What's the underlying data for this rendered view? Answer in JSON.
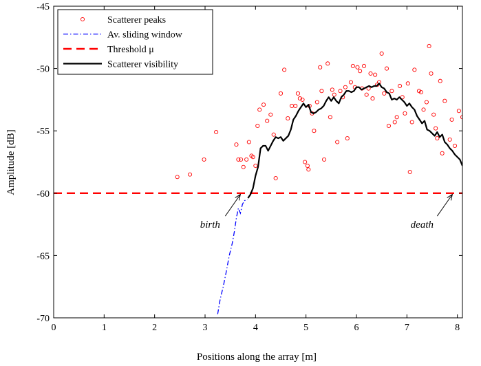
{
  "chart_data": {
    "type": "line",
    "xlabel": "Positions along the array [m]",
    "ylabel": "Amplitude [dB]",
    "xlim": [
      0,
      8.1
    ],
    "ylim": [
      -70,
      -45
    ],
    "xticks": [
      0,
      1,
      2,
      3,
      4,
      5,
      6,
      7,
      8
    ],
    "yticks": [
      -70,
      -65,
      -60,
      -55,
      -50,
      -45
    ],
    "xtick_labels": [
      "0",
      "1",
      "2",
      "3",
      "4",
      "5",
      "6",
      "7",
      "8"
    ],
    "ytick_labels": [
      "-70",
      "-65",
      "-60",
      "-55",
      "-50",
      "-45"
    ],
    "grid": false,
    "legend_position": "top-left",
    "legend": [
      {
        "label": "Scatterer peaks",
        "style": "circle",
        "color": "#ff0000"
      },
      {
        "label": "Av. sliding window",
        "style": "dashdot",
        "color": "#0000ff"
      },
      {
        "label": "Threshold μ",
        "style": "dashed",
        "color": "#ff0000"
      },
      {
        "label": "Scatterer visibility",
        "style": "solid",
        "color": "#000000"
      }
    ],
    "annotations": [
      {
        "text": "birth",
        "x": 3.1,
        "y": -62.5,
        "arrow_to": [
          3.7,
          -60.1
        ]
      },
      {
        "text": "death",
        "x": 7.3,
        "y": -62.5,
        "arrow_to": [
          7.9,
          -60.1
        ]
      }
    ],
    "series": [
      {
        "name": "Scatterer peaks",
        "kind": "scatter",
        "color": "#ff0000",
        "points": [
          [
            2.45,
            -58.7
          ],
          [
            2.7,
            -58.5
          ],
          [
            2.98,
            -57.3
          ],
          [
            3.22,
            -55.1
          ],
          [
            3.62,
            -56.1
          ],
          [
            3.66,
            -57.3
          ],
          [
            3.71,
            -57.3
          ],
          [
            3.76,
            -57.9
          ],
          [
            3.82,
            -57.3
          ],
          [
            3.87,
            -55.9
          ],
          [
            3.92,
            -57.0
          ],
          [
            3.95,
            -57.1
          ],
          [
            4.0,
            -57.8
          ],
          [
            4.04,
            -54.6
          ],
          [
            4.08,
            -53.3
          ],
          [
            4.16,
            -52.9
          ],
          [
            4.23,
            -54.2
          ],
          [
            4.3,
            -53.7
          ],
          [
            4.36,
            -55.3
          ],
          [
            4.4,
            -58.8
          ],
          [
            4.5,
            -52.0
          ],
          [
            4.57,
            -50.1
          ],
          [
            4.64,
            -54.0
          ],
          [
            4.72,
            -53.0
          ],
          [
            4.79,
            -53.0
          ],
          [
            4.84,
            -52.0
          ],
          [
            4.88,
            -52.4
          ],
          [
            4.93,
            -52.5
          ],
          [
            4.98,
            -57.5
          ],
          [
            5.03,
            -57.8
          ],
          [
            5.05,
            -58.1
          ],
          [
            5.07,
            -53.0
          ],
          [
            5.12,
            -53.6
          ],
          [
            5.16,
            -55.0
          ],
          [
            5.22,
            -52.7
          ],
          [
            5.28,
            -49.9
          ],
          [
            5.31,
            -51.8
          ],
          [
            5.36,
            -57.3
          ],
          [
            5.43,
            -49.6
          ],
          [
            5.48,
            -53.9
          ],
          [
            5.52,
            -51.7
          ],
          [
            5.56,
            -52.1
          ],
          [
            5.62,
            -55.9
          ],
          [
            5.68,
            -51.8
          ],
          [
            5.73,
            -52.3
          ],
          [
            5.78,
            -51.5
          ],
          [
            5.82,
            -55.6
          ],
          [
            5.89,
            -51.1
          ],
          [
            5.93,
            -49.8
          ],
          [
            5.97,
            -51.5
          ],
          [
            6.02,
            -49.9
          ],
          [
            6.07,
            -50.2
          ],
          [
            6.11,
            -51.6
          ],
          [
            6.15,
            -49.8
          ],
          [
            6.2,
            -52.1
          ],
          [
            6.24,
            -51.6
          ],
          [
            6.28,
            -50.4
          ],
          [
            6.32,
            -52.4
          ],
          [
            6.37,
            -50.5
          ],
          [
            6.41,
            -51.3
          ],
          [
            6.45,
            -51.1
          ],
          [
            6.5,
            -48.8
          ],
          [
            6.55,
            -52.0
          ],
          [
            6.6,
            -50.0
          ],
          [
            6.64,
            -54.6
          ],
          [
            6.7,
            -51.8
          ],
          [
            6.76,
            -54.3
          ],
          [
            6.8,
            -53.9
          ],
          [
            6.86,
            -51.4
          ],
          [
            6.91,
            -52.3
          ],
          [
            6.96,
            -53.6
          ],
          [
            7.02,
            -51.2
          ],
          [
            7.06,
            -58.3
          ],
          [
            7.1,
            -54.3
          ],
          [
            7.15,
            -50.1
          ],
          [
            7.24,
            -51.8
          ],
          [
            7.28,
            -51.9
          ],
          [
            7.33,
            -53.3
          ],
          [
            7.39,
            -52.7
          ],
          [
            7.44,
            -48.2
          ],
          [
            7.48,
            -50.4
          ],
          [
            7.53,
            -53.7
          ],
          [
            7.57,
            -54.8
          ],
          [
            7.6,
            -55.6
          ],
          [
            7.66,
            -51.0
          ],
          [
            7.7,
            -56.8
          ],
          [
            7.75,
            -52.6
          ],
          [
            7.85,
            -55.7
          ],
          [
            7.89,
            -54.1
          ],
          [
            7.95,
            -56.2
          ],
          [
            8.03,
            -53.4
          ],
          [
            8.1,
            -53.9
          ]
        ]
      },
      {
        "name": "Av. sliding window",
        "kind": "line",
        "style": "dashdot",
        "color": "#0000ff",
        "points": [
          [
            3.25,
            -69.7
          ],
          [
            3.3,
            -68.5
          ],
          [
            3.36,
            -67.5
          ],
          [
            3.42,
            -66.3
          ],
          [
            3.48,
            -65.0
          ],
          [
            3.54,
            -64.0
          ],
          [
            3.58,
            -63.1
          ],
          [
            3.62,
            -62.0
          ],
          [
            3.66,
            -61.2
          ],
          [
            3.7,
            -61.6
          ],
          [
            3.74,
            -60.9
          ],
          [
            3.78,
            -60.6
          ],
          [
            3.84,
            -60.5
          ]
        ]
      },
      {
        "name": "Threshold μ",
        "kind": "line",
        "style": "dashed",
        "color": "#ff0000",
        "points": [
          [
            0,
            -60
          ],
          [
            8.1,
            -60
          ]
        ]
      },
      {
        "name": "Scatterer visibility",
        "kind": "line",
        "style": "solid",
        "color": "#000000",
        "points": [
          [
            3.85,
            -60.4
          ],
          [
            3.9,
            -60.1
          ],
          [
            3.95,
            -59.6
          ],
          [
            4.0,
            -58.6
          ],
          [
            4.05,
            -57.9
          ],
          [
            4.1,
            -56.4
          ],
          [
            4.15,
            -56.2
          ],
          [
            4.2,
            -56.2
          ],
          [
            4.25,
            -56.6
          ],
          [
            4.3,
            -56.2
          ],
          [
            4.35,
            -55.8
          ],
          [
            4.4,
            -55.5
          ],
          [
            4.45,
            -55.6
          ],
          [
            4.5,
            -55.5
          ],
          [
            4.55,
            -55.8
          ],
          [
            4.6,
            -55.6
          ],
          [
            4.65,
            -55.4
          ],
          [
            4.7,
            -54.9
          ],
          [
            4.75,
            -54.1
          ],
          [
            4.8,
            -53.8
          ],
          [
            4.85,
            -53.4
          ],
          [
            4.9,
            -53.1
          ],
          [
            4.95,
            -52.8
          ],
          [
            5.0,
            -53.1
          ],
          [
            5.05,
            -52.9
          ],
          [
            5.1,
            -53.5
          ],
          [
            5.15,
            -53.6
          ],
          [
            5.2,
            -53.5
          ],
          [
            5.25,
            -53.3
          ],
          [
            5.3,
            -53.2
          ],
          [
            5.35,
            -53.0
          ],
          [
            5.4,
            -52.6
          ],
          [
            5.45,
            -52.3
          ],
          [
            5.5,
            -52.6
          ],
          [
            5.55,
            -52.3
          ],
          [
            5.6,
            -52.6
          ],
          [
            5.65,
            -52.8
          ],
          [
            5.7,
            -52.3
          ],
          [
            5.75,
            -52.1
          ],
          [
            5.8,
            -51.8
          ],
          [
            5.85,
            -51.8
          ],
          [
            5.9,
            -51.9
          ],
          [
            5.95,
            -51.8
          ],
          [
            6.0,
            -51.5
          ],
          [
            6.05,
            -51.5
          ],
          [
            6.1,
            -51.7
          ],
          [
            6.15,
            -51.6
          ],
          [
            6.2,
            -51.5
          ],
          [
            6.25,
            -51.4
          ],
          [
            6.3,
            -51.5
          ],
          [
            6.35,
            -51.4
          ],
          [
            6.4,
            -51.4
          ],
          [
            6.45,
            -51.2
          ],
          [
            6.5,
            -51.5
          ],
          [
            6.55,
            -51.6
          ],
          [
            6.6,
            -51.9
          ],
          [
            6.65,
            -52.0
          ],
          [
            6.7,
            -52.5
          ],
          [
            6.75,
            -52.4
          ],
          [
            6.8,
            -52.5
          ],
          [
            6.85,
            -52.3
          ],
          [
            6.9,
            -52.5
          ],
          [
            6.95,
            -52.7
          ],
          [
            7.0,
            -53.0
          ],
          [
            7.05,
            -52.8
          ],
          [
            7.1,
            -53.1
          ],
          [
            7.15,
            -53.3
          ],
          [
            7.2,
            -53.8
          ],
          [
            7.25,
            -54.1
          ],
          [
            7.3,
            -54.4
          ],
          [
            7.35,
            -54.2
          ],
          [
            7.4,
            -54.9
          ],
          [
            7.45,
            -55.0
          ],
          [
            7.5,
            -55.2
          ],
          [
            7.55,
            -55.4
          ],
          [
            7.6,
            -55.1
          ],
          [
            7.65,
            -55.5
          ],
          [
            7.7,
            -55.3
          ],
          [
            7.75,
            -55.9
          ],
          [
            7.8,
            -56.1
          ],
          [
            7.85,
            -56.4
          ],
          [
            7.9,
            -56.6
          ],
          [
            7.95,
            -56.9
          ],
          [
            8.0,
            -57.1
          ],
          [
            8.05,
            -57.3
          ],
          [
            8.1,
            -57.8
          ]
        ]
      }
    ]
  }
}
